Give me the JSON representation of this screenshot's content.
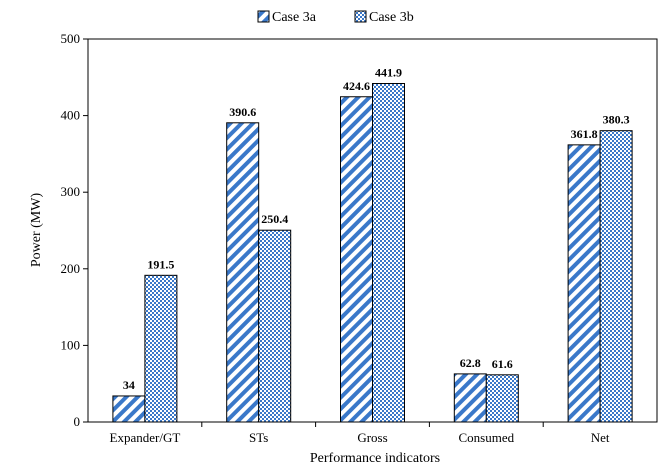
{
  "chart_data": {
    "type": "bar",
    "title": "",
    "xlabel": "Performance indicators",
    "ylabel": "Power (MW)",
    "ylim": [
      0,
      500
    ],
    "yticks": [
      0,
      100,
      200,
      300,
      400,
      500
    ],
    "categories": [
      "Expander/GT",
      "STs",
      "Gross",
      "Consumed",
      "Net"
    ],
    "series": [
      {
        "name": "Case 3a",
        "values": [
          34,
          390.6,
          424.6,
          62.8,
          361.8
        ],
        "labels": [
          "34",
          "390.6",
          "424.6",
          "62.8",
          "361.8"
        ],
        "pattern": "diagonal-hatch",
        "color": "#3a78c9"
      },
      {
        "name": "Case 3b",
        "values": [
          191.5,
          250.4,
          441.9,
          61.6,
          380.3
        ],
        "labels": [
          "191.5",
          "250.4",
          "441.9",
          "61.6",
          "380.3"
        ],
        "pattern": "checker",
        "color": "#3a78c9"
      }
    ],
    "legend_position": "top-center",
    "grid": false
  }
}
